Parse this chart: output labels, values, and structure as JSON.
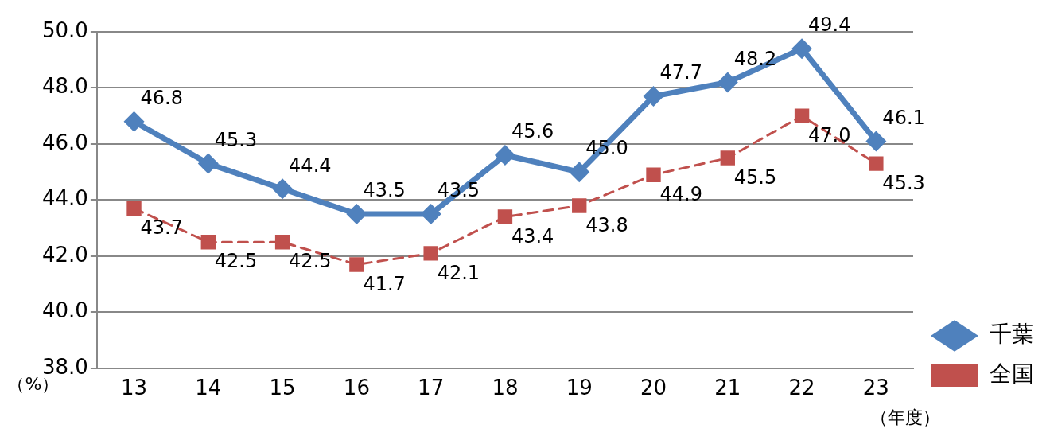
{
  "chart_data": {
    "type": "line",
    "xlabel": "（年度）",
    "ylabel": "（%）",
    "categories": [
      "13",
      "14",
      "15",
      "16",
      "17",
      "18",
      "19",
      "20",
      "21",
      "22",
      "23"
    ],
    "series": [
      {
        "name": "千葉",
        "color": "#4f81bd",
        "marker": "diamond",
        "line_style": "solid",
        "values": [
          46.8,
          45.3,
          44.4,
          43.5,
          43.5,
          45.6,
          45.0,
          47.7,
          48.2,
          49.4,
          46.1
        ],
        "value_labels": [
          "46.8",
          "45.3",
          "44.4",
          "43.5",
          "43.5",
          "45.6",
          "45.0",
          "47.7",
          "48.2",
          "49.4",
          "46.1"
        ]
      },
      {
        "name": "全国",
        "color": "#c0504d",
        "marker": "square",
        "line_style": "dashed",
        "values": [
          43.7,
          42.5,
          42.5,
          41.7,
          42.1,
          43.4,
          43.8,
          44.9,
          45.5,
          47.0,
          45.3
        ],
        "value_labels": [
          "43.7",
          "42.5",
          "42.5",
          "41.7",
          "42.1",
          "43.4",
          "43.8",
          "44.9",
          "45.5",
          "47.0",
          "45.3"
        ]
      }
    ],
    "ylim": [
      38,
      50
    ],
    "yticks": [
      {
        "value": 38,
        "label": "38.0"
      },
      {
        "value": 40,
        "label": "40.0"
      },
      {
        "value": 42,
        "label": "42.0"
      },
      {
        "value": 44,
        "label": "44.0"
      },
      {
        "value": 46,
        "label": "46.0"
      },
      {
        "value": 48,
        "label": "48.0"
      },
      {
        "value": 50,
        "label": "50.0"
      }
    ],
    "grid": "y",
    "legend": "right"
  }
}
